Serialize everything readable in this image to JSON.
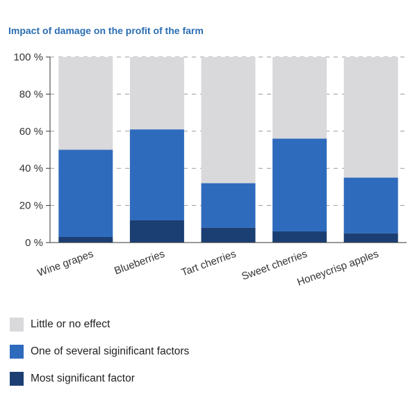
{
  "chart_data": {
    "type": "bar",
    "stacked": true,
    "title": "Impact of damage on the profit of the farm",
    "xlabel": "",
    "ylabel": "",
    "ylim": [
      0,
      100
    ],
    "yticks": [
      "0 %",
      "20 %",
      "40 %",
      "60 %",
      "80 %",
      "100 %"
    ],
    "yticks_values": [
      0,
      20,
      40,
      60,
      80,
      100
    ],
    "grid": "horizontal dashed",
    "legend_position": "bottom-left",
    "categories": [
      "Wine grapes",
      "Blueberries",
      "Tart cherries",
      "Sweet cherries",
      "Honeycrisp apples"
    ],
    "series": [
      {
        "name": "Most significant factor",
        "color": "#1b3f73",
        "values": [
          3,
          12,
          8,
          6,
          5
        ]
      },
      {
        "name": "One of several siginificant factors",
        "color": "#2f6bbd",
        "values": [
          47,
          49,
          24,
          50,
          30
        ]
      },
      {
        "name": "Little or no effect",
        "color": "#d9d9dc",
        "values": [
          50,
          39,
          68,
          44,
          65
        ]
      }
    ],
    "legend_order": [
      "Little or no effect",
      "One of several siginificant factors",
      "Most significant factor"
    ]
  }
}
